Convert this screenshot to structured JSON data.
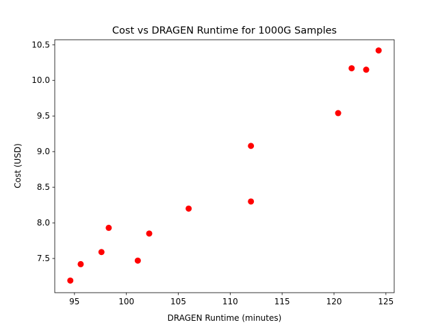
{
  "chart_data": {
    "type": "scatter",
    "title": "Cost vs DRAGEN Runtime for 1000G Samples",
    "xlabel": "DRAGEN Runtime (minutes)",
    "ylabel": "Cost (USD)",
    "xlim": [
      93.1,
      125.8
    ],
    "ylim": [
      7.02,
      10.57
    ],
    "xticks": [
      95,
      100,
      105,
      110,
      115,
      120,
      125
    ],
    "yticks": [
      7.5,
      8.0,
      8.5,
      9.0,
      9.5,
      10.0,
      10.5
    ],
    "x_tick_labels": [
      "95",
      "100",
      "105",
      "110",
      "115",
      "120",
      "125"
    ],
    "y_tick_labels": [
      "7.5",
      "8.0",
      "8.5",
      "9.0",
      "9.5",
      "10.0",
      "10.5"
    ],
    "grid": false,
    "marker_color": "#ff0000",
    "series": [
      {
        "x": [
          94.6,
          95.6,
          97.6,
          98.3,
          101.1,
          102.2,
          106.0,
          112.0,
          112.0,
          120.4,
          121.7,
          123.1,
          124.3
        ],
        "y": [
          7.19,
          7.42,
          7.59,
          7.93,
          7.47,
          7.85,
          8.2,
          9.08,
          8.3,
          9.54,
          10.17,
          10.15,
          10.42
        ]
      }
    ]
  }
}
